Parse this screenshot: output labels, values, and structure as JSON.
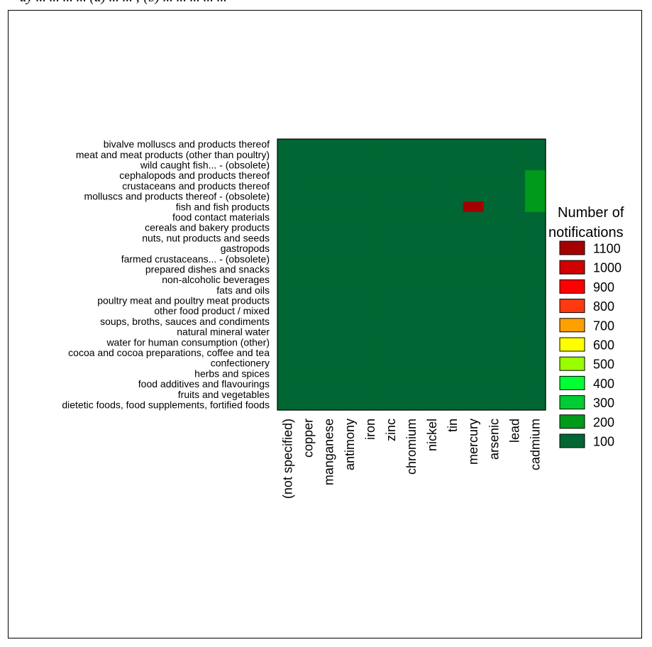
{
  "caption_fragment": "ay ... ... ... ... (a) ... ... ; (b) ... ... ... ... ...",
  "chart_data": {
    "type": "heatmap",
    "title": "",
    "xlabel": "",
    "ylabel": "",
    "x_categories": [
      "(not specified)",
      "copper",
      "manganese",
      "antimony",
      "iron",
      "zinc",
      "chromium",
      "nickel",
      "tin",
      "mercury",
      "arsenic",
      "lead",
      "cadmium"
    ],
    "y_categories": [
      "bivalve molluscs and products thereof",
      "meat and meat products (other than poultry)",
      "wild caught fish... - (obsolete)",
      "cephalopods and products thereof",
      "crustaceans and products thereof",
      "molluscs and products thereof - (obsolete)",
      "fish and fish products",
      "food contact materials",
      "cereals and bakery products",
      "nuts, nut products and seeds",
      "gastropods",
      "farmed crustaceans... - (obsolete)",
      "prepared dishes and snacks",
      "non-alcoholic beverages",
      "fats and oils",
      "poultry meat and poultry meat products",
      "other food product / mixed",
      "soups, broths, sauces and condiments",
      "natural mineral water",
      "water for human consumption (other)",
      "cocoa and cocoa preparations, coffee and tea",
      "confectionery",
      "herbs and spices",
      "food additives and flavourings",
      "fruits and vegetables",
      "dietetic foods, food supplements, fortified foods"
    ],
    "default_value": 100,
    "cells": [
      {
        "x": "mercury",
        "y": "fish and fish products",
        "value": 1100
      },
      {
        "x": "cadmium",
        "y": "cephalopods and products thereof",
        "value": 200
      },
      {
        "x": "cadmium",
        "y": "crustaceans and products thereof",
        "value": 200
      },
      {
        "x": "cadmium",
        "y": "molluscs and products thereof - (obsolete)",
        "value": 200
      },
      {
        "x": "cadmium",
        "y": "fish and fish products",
        "value": 200
      }
    ],
    "legend": {
      "title_line1": "Number of",
      "title_line2": "notifications",
      "placement": "right",
      "levels": [
        {
          "label": "1100",
          "value": 1100,
          "color": "#a50000"
        },
        {
          "label": "1000",
          "value": 1000,
          "color": "#d20000"
        },
        {
          "label": "900",
          "value": 900,
          "color": "#ff0000"
        },
        {
          "label": "800",
          "value": 800,
          "color": "#ff3a10"
        },
        {
          "label": "700",
          "value": 700,
          "color": "#ffa000"
        },
        {
          "label": "600",
          "value": 600,
          "color": "#ffff00"
        },
        {
          "label": "500",
          "value": 500,
          "color": "#99ff00"
        },
        {
          "label": "400",
          "value": 400,
          "color": "#00ff33"
        },
        {
          "label": "300",
          "value": 300,
          "color": "#00cc33"
        },
        {
          "label": "200",
          "value": 200,
          "color": "#009a1a"
        },
        {
          "label": "100",
          "value": 100,
          "color": "#006633"
        }
      ]
    }
  }
}
